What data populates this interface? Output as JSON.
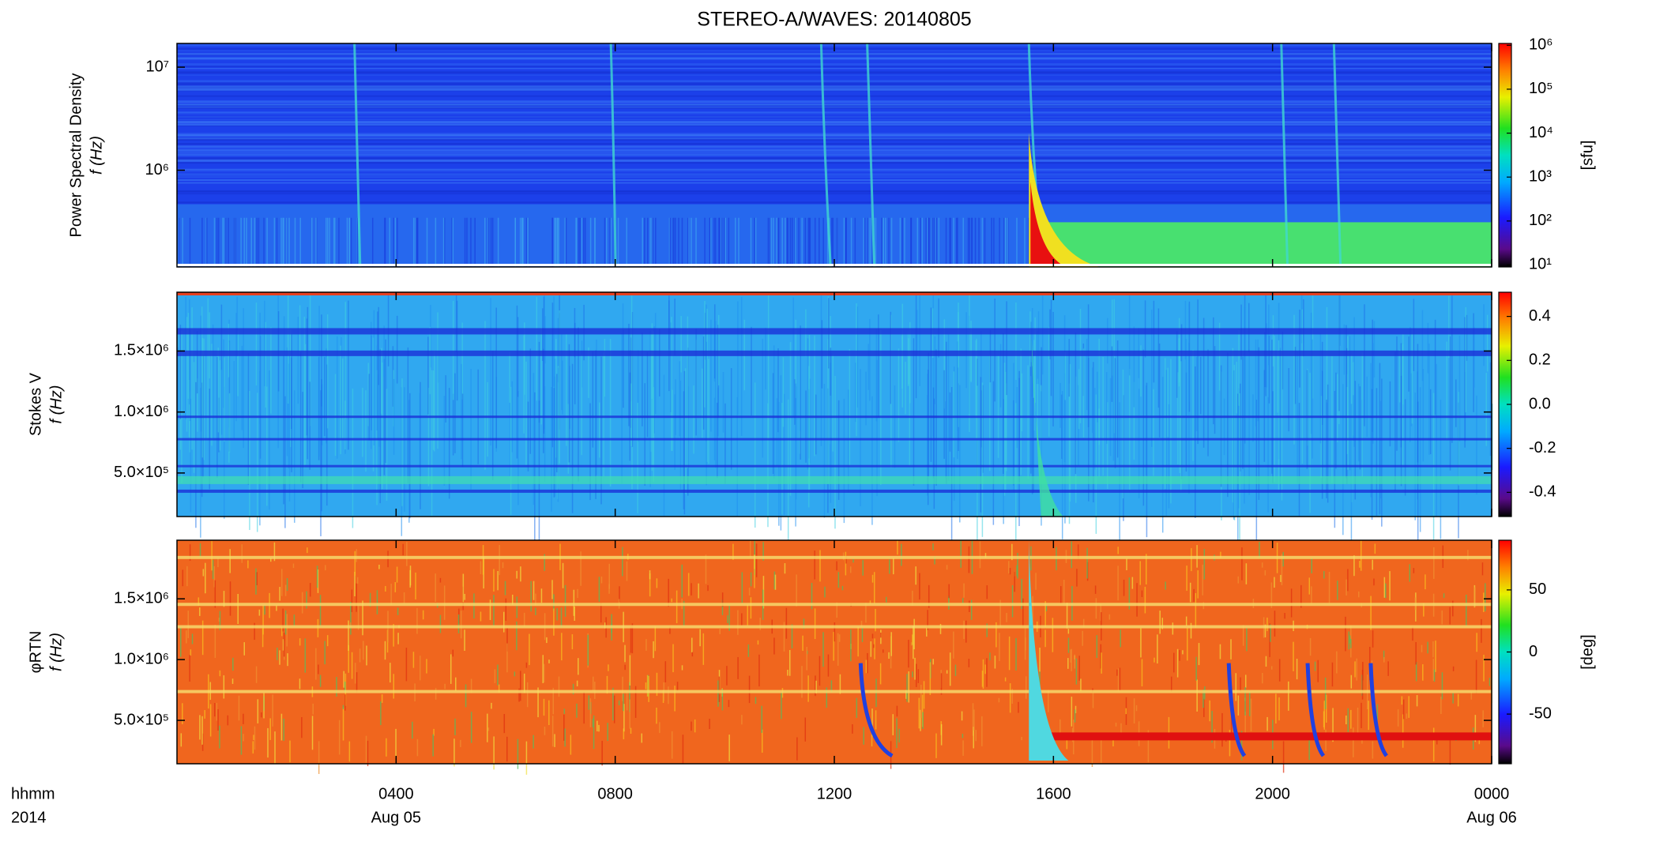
{
  "chart_data": {
    "type": "spectrogram",
    "title": "STEREO-A/WAVES: 20140805",
    "x_axis_label": [
      "hhmm",
      "2014"
    ],
    "xlim": [
      0,
      24
    ],
    "xticks": [
      {
        "value": 4,
        "label": "0400"
      },
      {
        "value": 8,
        "label": "0800"
      },
      {
        "value": 12,
        "label": "1200"
      },
      {
        "value": 16,
        "label": "1600"
      },
      {
        "value": 20,
        "label": "2000"
      },
      {
        "value": 24,
        "label": "0000"
      }
    ],
    "x_date_labels": [
      {
        "value": 4,
        "label": "Aug 05"
      },
      {
        "value": 24,
        "label": "Aug 06"
      }
    ],
    "panels": [
      {
        "ylabel": [
          "Power Spectral Density",
          "f (Hz)"
        ],
        "log_y": true,
        "ylim": [
          115000,
          17000000
        ],
        "yticks": [
          {
            "value": 1000000,
            "label": "10⁶"
          },
          {
            "value": 10000000,
            "label": "10⁷"
          }
        ],
        "colorbar": {
          "label": "[sfu]",
          "log": true,
          "clim": [
            9,
            1100000
          ],
          "ticks": [
            {
              "value": 10,
              "label": "10¹"
            },
            {
              "value": 100,
              "label": "10²"
            },
            {
              "value": 1000,
              "label": "10³"
            },
            {
              "value": 10000,
              "label": "10⁴"
            },
            {
              "value": 100000,
              "label": "10⁵"
            },
            {
              "value": 1000000,
              "label": "10⁶"
            }
          ]
        }
      },
      {
        "ylabel": [
          "Stokes V",
          "f (Hz)"
        ],
        "log_y": false,
        "ylim": [
          143000,
          1982000
        ],
        "yticks": [
          {
            "value": 500000,
            "label": "5.0×10⁵"
          },
          {
            "value": 1000000,
            "label": "1.0×10⁶"
          },
          {
            "value": 1500000,
            "label": "1.5×10⁶"
          }
        ],
        "colorbar": {
          "label": null,
          "log": false,
          "clim": [
            -0.51,
            0.51
          ],
          "ticks": [
            -0.4,
            -0.2,
            {
              "value": 0,
              "label": "0.0"
            },
            0.2,
            0.4
          ]
        }
      },
      {
        "ylabel": [
          "φRTN",
          "f (Hz)"
        ],
        "log_y": false,
        "ylim": [
          143000,
          1982000
        ],
        "yticks": [
          {
            "value": 500000,
            "label": "5.0×10⁵"
          },
          {
            "value": 1000000,
            "label": "1.0×10⁶"
          },
          {
            "value": 1500000,
            "label": "1.5×10⁶"
          }
        ],
        "colorbar": {
          "label": "[deg]",
          "log": false,
          "clim": [
            -90,
            90
          ],
          "ticks": [
            -50,
            0,
            50
          ]
        }
      }
    ]
  }
}
